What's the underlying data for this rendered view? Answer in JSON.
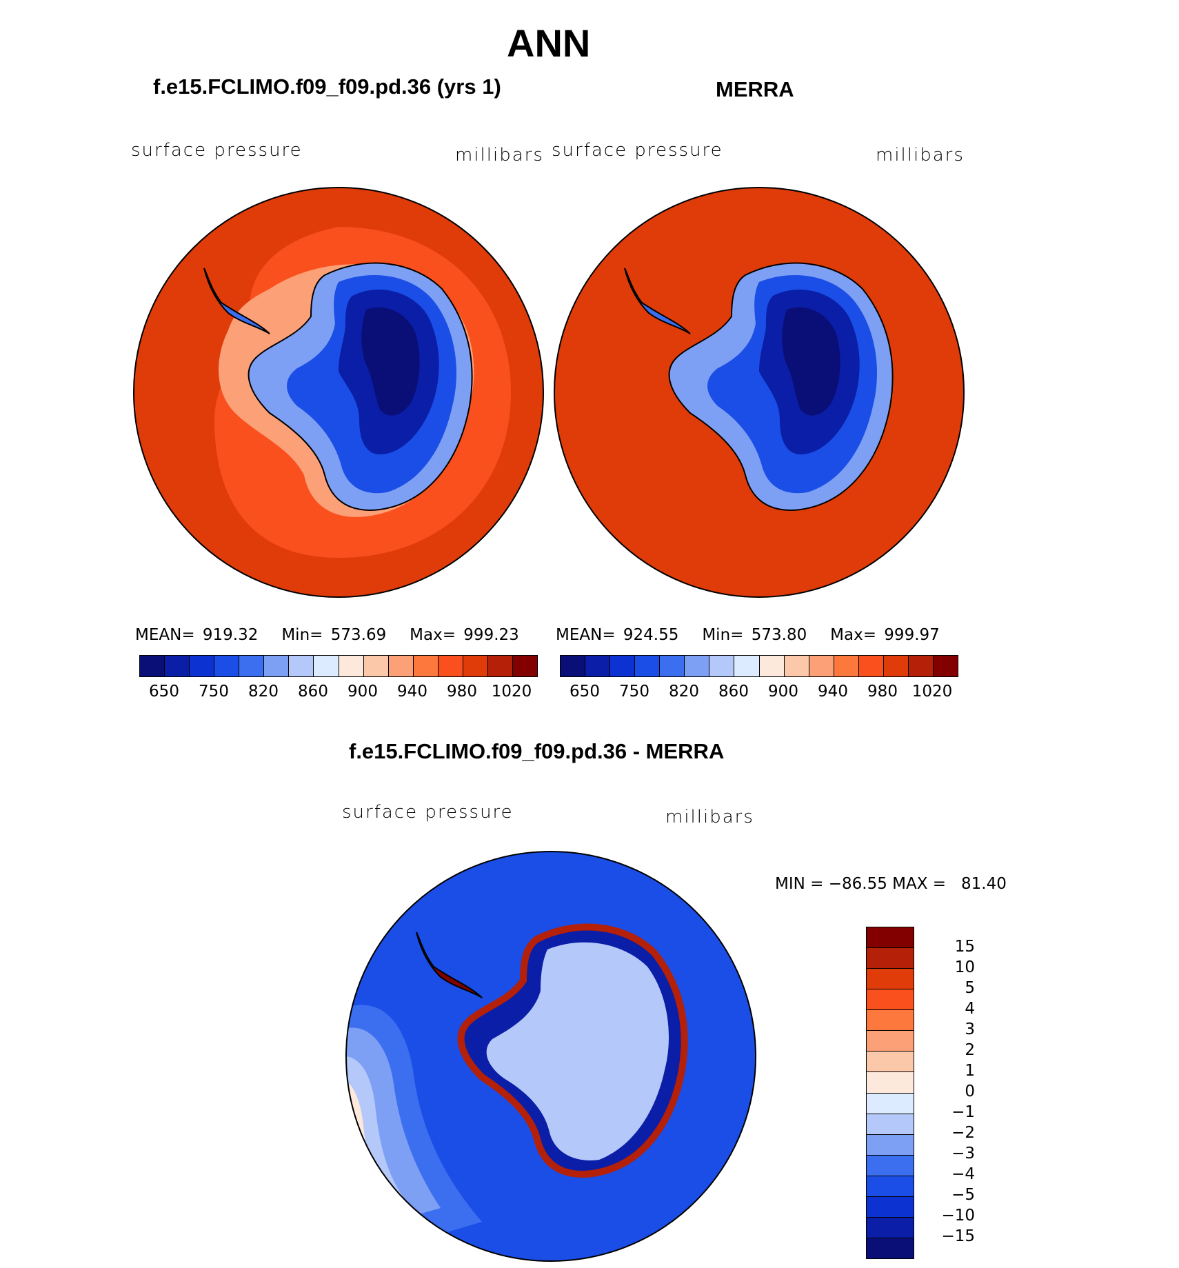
{
  "page_title": "ANN",
  "panel_left": {
    "title": "f.e15.FCLIMO.f09_f09.pd.36 (yrs 1)",
    "left_label": "surface pressure",
    "right_label": "millibars",
    "stats": {
      "mean_label": "MEAN=",
      "mean": "919.32",
      "min_label": "Min=",
      "min": "573.69",
      "max_label": "Max=",
      "max": "999.23"
    }
  },
  "panel_right": {
    "title": "MERRA",
    "left_label": "surface pressure",
    "right_label": "millibars",
    "stats": {
      "mean_label": "MEAN=",
      "mean": "924.55",
      "min_label": "Min=",
      "min": "573.80",
      "max_label": "Max=",
      "max": "999.97"
    }
  },
  "panel_diff": {
    "title": "f.e15.FCLIMO.f09_f09.pd.36 - MERRA",
    "left_label": "surface pressure",
    "right_label": "millibars",
    "minmax": "MIN = −86.55 MAX =   81.40"
  },
  "abs_colorbar": {
    "colors": [
      "#0a0f78",
      "#0a1ea8",
      "#0d32d2",
      "#1a4ee6",
      "#3c6ef0",
      "#7ea0f4",
      "#b4c8fa",
      "#dcebff",
      "#fde9dc",
      "#fcc8aa",
      "#fca078",
      "#fc783c",
      "#fa501e",
      "#e03c0a",
      "#b42008",
      "#820000"
    ],
    "ticks": [
      "650",
      "750",
      "820",
      "860",
      "900",
      "940",
      "980",
      "1020"
    ]
  },
  "diff_colorbar": {
    "colors": [
      "#820000",
      "#b42008",
      "#e03c0a",
      "#fa501e",
      "#fc783c",
      "#fca078",
      "#fcc8aa",
      "#fde9dc",
      "#dcebff",
      "#b4c8fa",
      "#7ea0f4",
      "#3c6ef0",
      "#1a4ee6",
      "#0d32d2",
      "#0a1ea8",
      "#0a0f78"
    ],
    "ticks": [
      "15",
      "10",
      "5",
      "4",
      "3",
      "2",
      "1",
      "0",
      "−1",
      "−2",
      "−3",
      "−4",
      "−5",
      "−10",
      "−15"
    ]
  }
}
